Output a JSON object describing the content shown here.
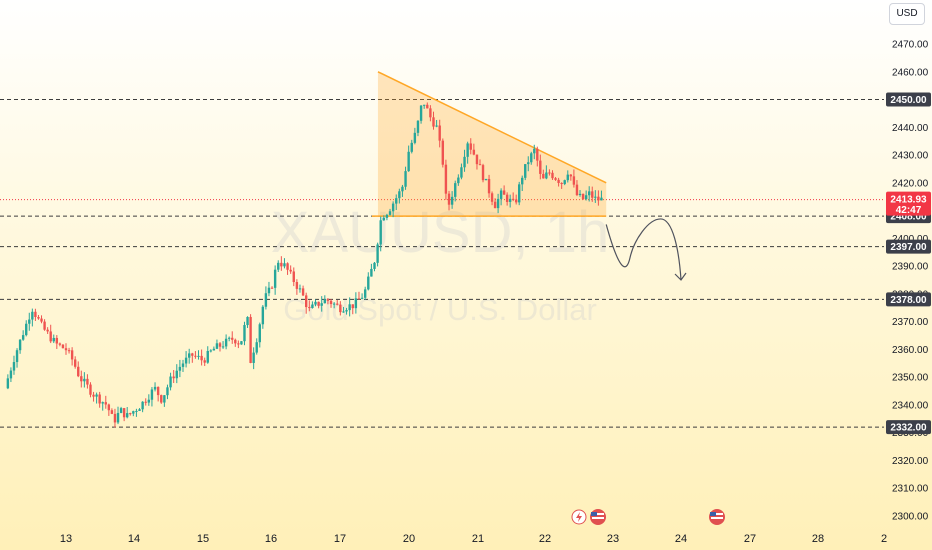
{
  "currency_button": "USD",
  "colors": {
    "up": "#26a69a",
    "down": "#ef5350",
    "triangle": "#ffa726",
    "tag_dark": "#5d606b",
    "price_tag": "#f23645"
  },
  "chart_data": {
    "type": "candlestick",
    "symbol": "XAUUSD, 1h",
    "description": "Gold Spot / U.S. Dollar",
    "y_ticks": [
      2300,
      2310,
      2320,
      2330,
      2340,
      2350,
      2360,
      2370,
      2380,
      2390,
      2400,
      2410,
      2420,
      2430,
      2440,
      2450,
      2460,
      2470
    ],
    "y_tick_labels": [
      "2300.00",
      "2310.00",
      "2320.00",
      "2330.00",
      "2340.00",
      "2350.00",
      "2360.00",
      "2370.00",
      "2380.00",
      "2390.00",
      "2400.00",
      "2410.00",
      "2420.00",
      "2430.00",
      "2440.00",
      "2450.00",
      "2460.00",
      "2470.00"
    ],
    "ylim": [
      2297,
      2477
    ],
    "x_tick_labels": [
      "13",
      "14",
      "15",
      "16",
      "17",
      "20",
      "21",
      "22",
      "23",
      "24",
      "27",
      "28",
      "2"
    ],
    "x_tick_positions": [
      0,
      1,
      2,
      3,
      4,
      5,
      6,
      7,
      8,
      9,
      10,
      11,
      12
    ],
    "horizontal_levels": [
      {
        "value": 2450,
        "label": "2450.00"
      },
      {
        "value": 2408,
        "label": "2408.00"
      },
      {
        "value": 2397,
        "label": "2397.00"
      },
      {
        "value": 2378,
        "label": "2378.00"
      },
      {
        "value": 2332,
        "label": "2332.00"
      }
    ],
    "last_price": {
      "value": 2413.93,
      "label": "2413.93",
      "countdown": "42:47"
    },
    "triangle": {
      "start_day": 4.55,
      "end_day": 7.9,
      "top_start": 2460,
      "top_end": 2420,
      "base": 2408
    },
    "projection": [
      [
        7.9,
        2405
      ],
      [
        8.25,
        2393
      ],
      [
        8.55,
        2397
      ],
      [
        8.7,
        2407
      ],
      [
        9.0,
        2385
      ]
    ],
    "close_series": [
      [
        -0.9,
        2346
      ],
      [
        -0.75,
        2358
      ],
      [
        -0.6,
        2368
      ],
      [
        -0.5,
        2375
      ],
      [
        -0.35,
        2368
      ],
      [
        -0.15,
        2362
      ],
      [
        0.0,
        2360
      ],
      [
        0.1,
        2356
      ],
      [
        0.2,
        2350
      ],
      [
        0.3,
        2347
      ],
      [
        0.4,
        2344
      ],
      [
        0.5,
        2342
      ],
      [
        0.6,
        2340
      ],
      [
        0.7,
        2334
      ],
      [
        0.8,
        2338
      ],
      [
        0.9,
        2336
      ],
      [
        1.0,
        2338
      ],
      [
        1.1,
        2340
      ],
      [
        1.2,
        2343
      ],
      [
        1.3,
        2346
      ],
      [
        1.4,
        2342
      ],
      [
        1.55,
        2350
      ],
      [
        1.7,
        2355
      ],
      [
        1.85,
        2358
      ],
      [
        2.0,
        2356
      ],
      [
        2.15,
        2360
      ],
      [
        2.3,
        2362
      ],
      [
        2.45,
        2364
      ],
      [
        2.55,
        2362
      ],
      [
        2.65,
        2372
      ],
      [
        2.7,
        2356
      ],
      [
        2.8,
        2365
      ],
      [
        2.9,
        2378
      ],
      [
        3.0,
        2382
      ],
      [
        3.1,
        2392
      ],
      [
        3.2,
        2390
      ],
      [
        3.3,
        2386
      ],
      [
        3.45,
        2380
      ],
      [
        3.55,
        2374
      ],
      [
        3.65,
        2376
      ],
      [
        3.8,
        2378
      ],
      [
        4.0,
        2375
      ],
      [
        4.2,
        2376
      ],
      [
        4.35,
        2380
      ],
      [
        4.5,
        2392
      ],
      [
        4.6,
        2408
      ],
      [
        4.7,
        2410
      ],
      [
        4.8,
        2414
      ],
      [
        4.9,
        2418
      ],
      [
        5.0,
        2432
      ],
      [
        5.1,
        2438
      ],
      [
        5.2,
        2450
      ],
      [
        5.3,
        2444
      ],
      [
        5.4,
        2440
      ],
      [
        5.5,
        2426
      ],
      [
        5.55,
        2410
      ],
      [
        5.65,
        2418
      ],
      [
        5.75,
        2426
      ],
      [
        5.85,
        2435
      ],
      [
        5.95,
        2430
      ],
      [
        6.05,
        2424
      ],
      [
        6.15,
        2418
      ],
      [
        6.25,
        2412
      ],
      [
        6.35,
        2416
      ],
      [
        6.45,
        2414
      ],
      [
        6.55,
        2412
      ],
      [
        6.65,
        2422
      ],
      [
        6.75,
        2428
      ],
      [
        6.85,
        2432
      ],
      [
        6.95,
        2420
      ],
      [
        7.05,
        2424
      ],
      [
        7.15,
        2422
      ],
      [
        7.25,
        2420
      ],
      [
        7.35,
        2425
      ],
      [
        7.45,
        2416
      ],
      [
        7.55,
        2414
      ],
      [
        7.65,
        2416
      ],
      [
        7.75,
        2414
      ],
      [
        7.85,
        2414
      ]
    ]
  }
}
